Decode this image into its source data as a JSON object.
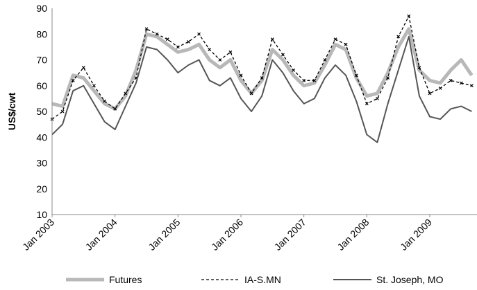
{
  "chart_data": {
    "type": "line",
    "title": "",
    "xlabel": "",
    "ylabel": "US$/cwt",
    "ylim": [
      10,
      90
    ],
    "yticks": [
      10,
      20,
      30,
      40,
      50,
      60,
      70,
      80,
      90
    ],
    "xlim": [
      "2003-01",
      "2009-10"
    ],
    "xtick_labels": [
      "Jan 2003",
      "Jan 2004",
      "Jan 2005",
      "Jan 2006",
      "Jan 2007",
      "Jan 2008",
      "Jan 2009"
    ],
    "grid": false,
    "legend_position": "bottom",
    "x": [
      "2003-01",
      "2003-03",
      "2003-05",
      "2003-07",
      "2003-09",
      "2003-11",
      "2004-01",
      "2004-03",
      "2004-05",
      "2004-07",
      "2004-09",
      "2004-11",
      "2005-01",
      "2005-03",
      "2005-05",
      "2005-07",
      "2005-09",
      "2005-11",
      "2006-01",
      "2006-03",
      "2006-05",
      "2006-07",
      "2006-09",
      "2006-11",
      "2007-01",
      "2007-03",
      "2007-05",
      "2007-07",
      "2007-09",
      "2007-11",
      "2008-01",
      "2008-03",
      "2008-05",
      "2008-07",
      "2008-09",
      "2008-11",
      "2009-01",
      "2009-03",
      "2009-05",
      "2009-07",
      "2009-09"
    ],
    "series": [
      {
        "name": "Futures",
        "color": "#b8b8b8",
        "style": "solid-thick",
        "values": [
          53,
          52,
          64,
          63,
          58,
          53,
          51,
          56,
          66,
          80,
          79,
          76,
          73,
          74,
          76,
          70,
          67,
          70,
          62,
          57,
          62,
          74,
          70,
          64,
          60,
          61,
          68,
          76,
          74,
          63,
          56,
          57,
          65,
          75,
          82,
          66,
          62,
          61,
          66,
          70,
          64
        ]
      },
      {
        "name": "IA-S.MN",
        "color": "#000000",
        "style": "dashed-marker",
        "values": [
          47,
          50,
          62,
          67,
          60,
          54,
          51,
          57,
          63,
          82,
          80,
          78,
          75,
          77,
          80,
          74,
          70,
          73,
          64,
          57,
          63,
          78,
          72,
          66,
          62,
          62,
          70,
          78,
          76,
          64,
          53,
          55,
          63,
          79,
          87,
          67,
          57,
          59,
          62,
          61,
          60
        ]
      },
      {
        "name": "St. Joseph, MO",
        "color": "#555555",
        "style": "solid",
        "values": [
          41,
          45,
          58,
          60,
          53,
          46,
          43,
          52,
          61,
          75,
          74,
          70,
          65,
          68,
          70,
          62,
          60,
          63,
          55,
          50,
          56,
          70,
          65,
          58,
          53,
          55,
          63,
          68,
          64,
          54,
          41,
          38,
          53,
          66,
          79,
          56,
          48,
          47,
          51,
          52,
          50
        ]
      }
    ]
  }
}
